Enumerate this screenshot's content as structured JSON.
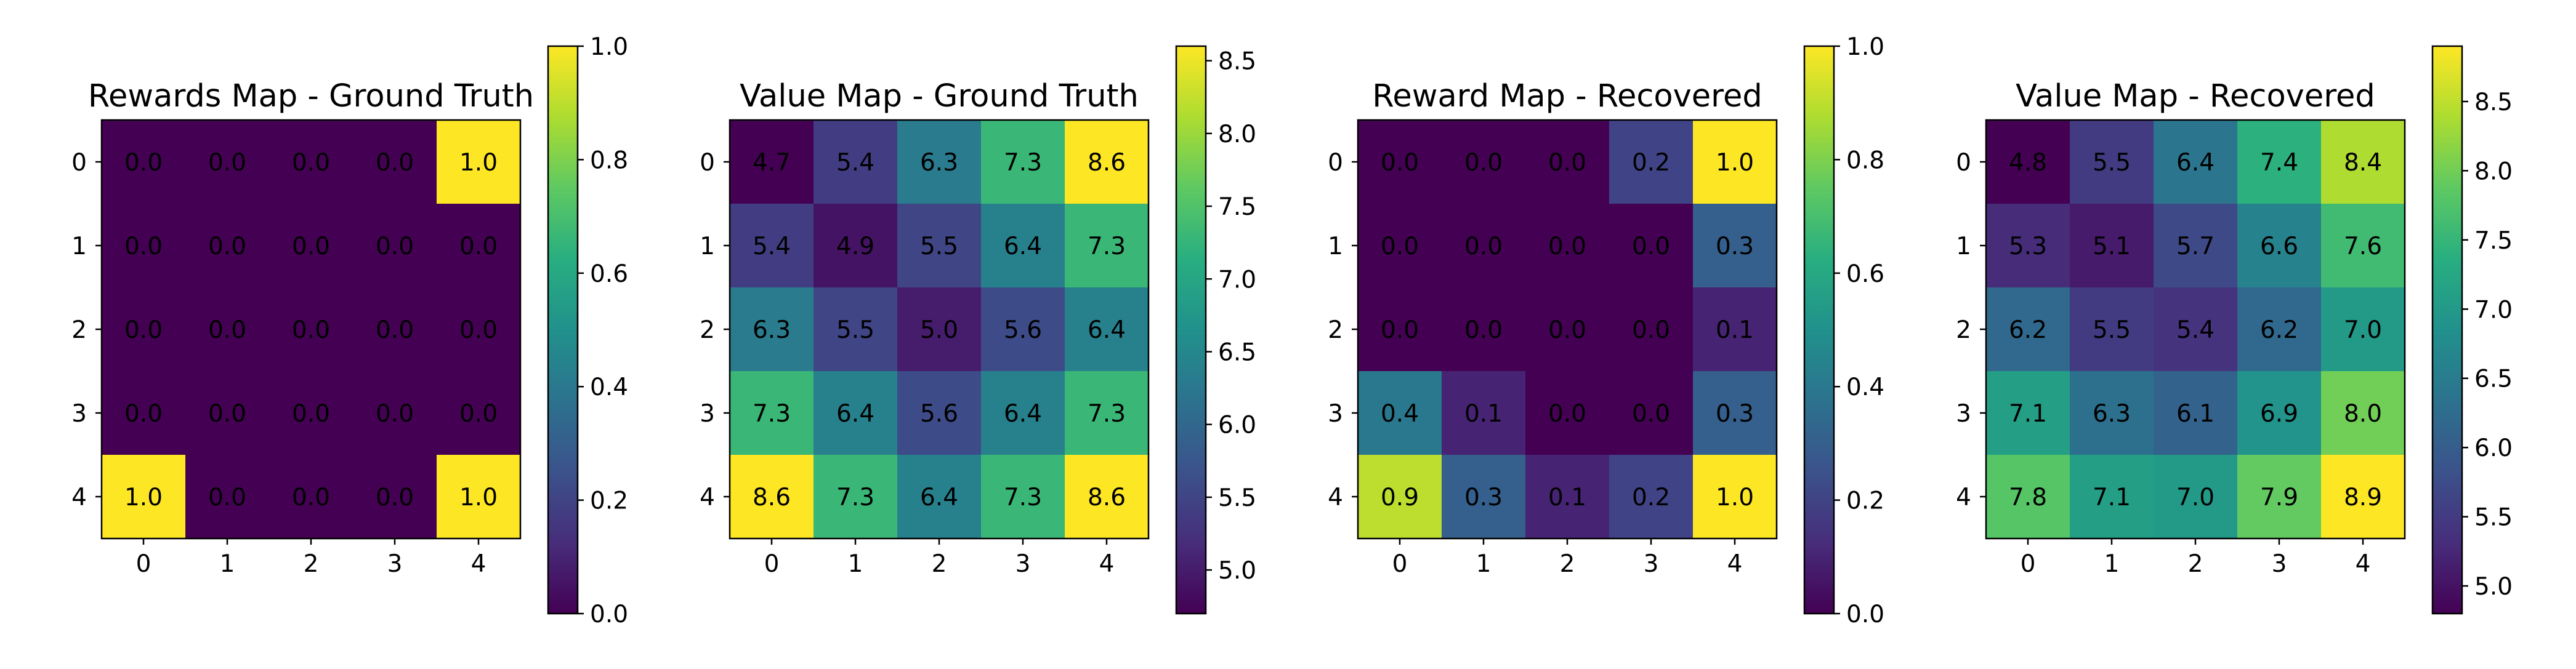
{
  "chart_data": [
    {
      "type": "heatmap",
      "title": "Rewards Map - Ground Truth",
      "x_ticks": [
        "0",
        "1",
        "2",
        "3",
        "4"
      ],
      "y_ticks": [
        "0",
        "1",
        "2",
        "3",
        "4"
      ],
      "values": [
        [
          0.0,
          0.0,
          0.0,
          0.0,
          1.0
        ],
        [
          0.0,
          0.0,
          0.0,
          0.0,
          0.0
        ],
        [
          0.0,
          0.0,
          0.0,
          0.0,
          0.0
        ],
        [
          0.0,
          0.0,
          0.0,
          0.0,
          0.0
        ],
        [
          1.0,
          0.0,
          0.0,
          0.0,
          1.0
        ]
      ],
      "cell_labels": [
        [
          "0.0",
          "0.0",
          "0.0",
          "0.0",
          "1.0"
        ],
        [
          "0.0",
          "0.0",
          "0.0",
          "0.0",
          "0.0"
        ],
        [
          "0.0",
          "0.0",
          "0.0",
          "0.0",
          "0.0"
        ],
        [
          "0.0",
          "0.0",
          "0.0",
          "0.0",
          "0.0"
        ],
        [
          "1.0",
          "0.0",
          "0.0",
          "0.0",
          "1.0"
        ]
      ],
      "colormap": "viridis",
      "color_range": [
        0.0,
        1.0
      ],
      "colorbar_ticks": [
        0.0,
        0.2,
        0.4,
        0.6,
        0.8,
        1.0
      ],
      "colorbar_tick_labels": [
        "0.0",
        "0.2",
        "0.4",
        "0.6",
        "0.8",
        "1.0"
      ]
    },
    {
      "type": "heatmap",
      "title": "Value Map - Ground Truth",
      "x_ticks": [
        "0",
        "1",
        "2",
        "3",
        "4"
      ],
      "y_ticks": [
        "0",
        "1",
        "2",
        "3",
        "4"
      ],
      "values": [
        [
          4.7,
          5.4,
          6.3,
          7.3,
          8.6
        ],
        [
          5.4,
          4.9,
          5.5,
          6.4,
          7.3
        ],
        [
          6.3,
          5.5,
          5.0,
          5.6,
          6.4
        ],
        [
          7.3,
          6.4,
          5.6,
          6.4,
          7.3
        ],
        [
          8.6,
          7.3,
          6.4,
          7.3,
          8.6
        ]
      ],
      "cell_labels": [
        [
          "4.7",
          "5.4",
          "6.3",
          "7.3",
          "8.6"
        ],
        [
          "5.4",
          "4.9",
          "5.5",
          "6.4",
          "7.3"
        ],
        [
          "6.3",
          "5.5",
          "5.0",
          "5.6",
          "6.4"
        ],
        [
          "7.3",
          "6.4",
          "5.6",
          "6.4",
          "7.3"
        ],
        [
          "8.6",
          "7.3",
          "6.4",
          "7.3",
          "8.6"
        ]
      ],
      "colormap": "viridis",
      "color_range": [
        4.7,
        8.6
      ],
      "colorbar_ticks": [
        5.0,
        5.5,
        6.0,
        6.5,
        7.0,
        7.5,
        8.0,
        8.5
      ],
      "colorbar_tick_labels": [
        "5.0",
        "5.5",
        "6.0",
        "6.5",
        "7.0",
        "7.5",
        "8.0",
        "8.5"
      ]
    },
    {
      "type": "heatmap",
      "title": "Reward Map - Recovered",
      "x_ticks": [
        "0",
        "1",
        "2",
        "3",
        "4"
      ],
      "y_ticks": [
        "0",
        "1",
        "2",
        "3",
        "4"
      ],
      "values": [
        [
          0.0,
          0.0,
          0.0,
          0.2,
          1.0
        ],
        [
          0.0,
          0.0,
          0.0,
          0.0,
          0.3
        ],
        [
          0.0,
          0.0,
          0.0,
          0.0,
          0.1
        ],
        [
          0.4,
          0.1,
          0.0,
          0.0,
          0.3
        ],
        [
          0.9,
          0.3,
          0.1,
          0.2,
          1.0
        ]
      ],
      "cell_labels": [
        [
          "0.0",
          "0.0",
          "0.0",
          "0.2",
          "1.0"
        ],
        [
          "0.0",
          "0.0",
          "0.0",
          "0.0",
          "0.3"
        ],
        [
          "0.0",
          "0.0",
          "0.0",
          "0.0",
          "0.1"
        ],
        [
          "0.4",
          "0.1",
          "0.0",
          "0.0",
          "0.3"
        ],
        [
          "0.9",
          "0.3",
          "0.1",
          "0.2",
          "1.0"
        ]
      ],
      "colormap": "viridis",
      "color_range": [
        0.0,
        1.0
      ],
      "colorbar_ticks": [
        0.0,
        0.2,
        0.4,
        0.6,
        0.8,
        1.0
      ],
      "colorbar_tick_labels": [
        "0.0",
        "0.2",
        "0.4",
        "0.6",
        "0.8",
        "1.0"
      ]
    },
    {
      "type": "heatmap",
      "title": "Value Map - Recovered",
      "x_ticks": [
        "0",
        "1",
        "2",
        "3",
        "4"
      ],
      "y_ticks": [
        "0",
        "1",
        "2",
        "3",
        "4"
      ],
      "values": [
        [
          4.8,
          5.5,
          6.4,
          7.4,
          8.4
        ],
        [
          5.3,
          5.1,
          5.7,
          6.6,
          7.6
        ],
        [
          6.2,
          5.5,
          5.4,
          6.2,
          7.0
        ],
        [
          7.1,
          6.3,
          6.1,
          6.9,
          8.0
        ],
        [
          7.8,
          7.1,
          7.0,
          7.9,
          8.9
        ]
      ],
      "cell_labels": [
        [
          "4.8",
          "5.5",
          "6.4",
          "7.4",
          "8.4"
        ],
        [
          "5.3",
          "5.1",
          "5.7",
          "6.6",
          "7.6"
        ],
        [
          "6.2",
          "5.5",
          "5.4",
          "6.2",
          "7.0"
        ],
        [
          "7.1",
          "6.3",
          "6.1",
          "6.9",
          "8.0"
        ],
        [
          "7.8",
          "7.1",
          "7.0",
          "7.9",
          "8.9"
        ]
      ],
      "colormap": "viridis",
      "color_range": [
        4.8,
        8.9
      ],
      "colorbar_ticks": [
        5.0,
        5.5,
        6.0,
        6.5,
        7.0,
        7.5,
        8.0,
        8.5
      ],
      "colorbar_tick_labels": [
        "5.0",
        "5.5",
        "6.0",
        "6.5",
        "7.0",
        "7.5",
        "8.0",
        "8.5"
      ]
    }
  ]
}
